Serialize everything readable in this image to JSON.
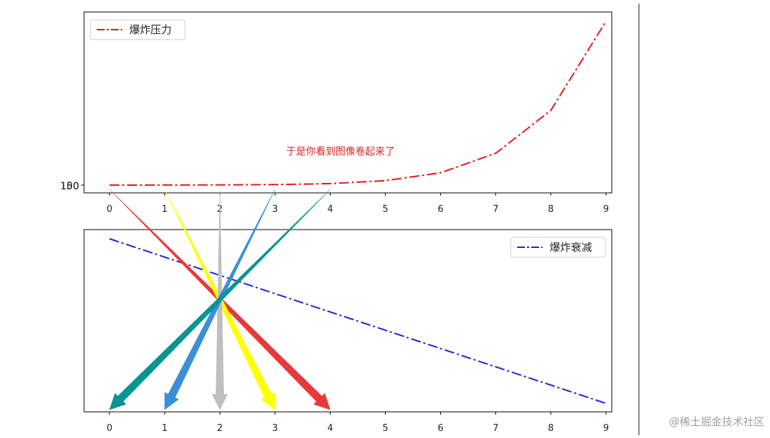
{
  "chart_data": [
    {
      "type": "line",
      "x": [
        0,
        1,
        2,
        3,
        4,
        5,
        6,
        7,
        8,
        9
      ],
      "xticks": [
        "0",
        "1",
        "2",
        "3",
        "4",
        "5",
        "6",
        "7",
        "8",
        "9"
      ],
      "yticks": [
        "100",
        "150"
      ],
      "series": [
        {
          "name": "爆炸压力",
          "color": "#e8161b",
          "style": "dash-dot",
          "values": [
            100,
            100.3,
            101,
            103,
            109,
            127,
            175,
            294,
            556,
            1100
          ]
        }
      ],
      "annotation": "于是你看到图像卷起来了",
      "annotation_color": "#d62728",
      "legend": "top-left",
      "grid": false
    },
    {
      "type": "line",
      "x": [
        0,
        1,
        2,
        3,
        4,
        5,
        6,
        7,
        8,
        9
      ],
      "xticks": [
        "0",
        "1",
        "2",
        "3",
        "4",
        "5",
        "6",
        "7",
        "8",
        "9"
      ],
      "series": [
        {
          "name": "爆炸衰减",
          "color": "#1f1fde",
          "style": "dash-dot",
          "values": [
            1.0,
            0.9,
            0.8,
            0.7,
            0.6,
            0.5,
            0.4,
            0.3,
            0.2,
            0.1
          ]
        }
      ],
      "legend": "top-right",
      "grid": false
    }
  ],
  "arrows": [
    {
      "color": "#e8393a",
      "from_x": 0,
      "to_x": 4
    },
    {
      "color": "#ffff00",
      "from_x": 1,
      "to_x": 3
    },
    {
      "color": "#bfbfbf",
      "from_x": 2,
      "to_x": 2
    },
    {
      "color": "#3b8fd9",
      "from_x": 3,
      "to_x": 1
    },
    {
      "color": "#0a9393",
      "from_x": 4,
      "to_x": 0
    }
  ],
  "watermark": "@稀土掘金技术社区"
}
